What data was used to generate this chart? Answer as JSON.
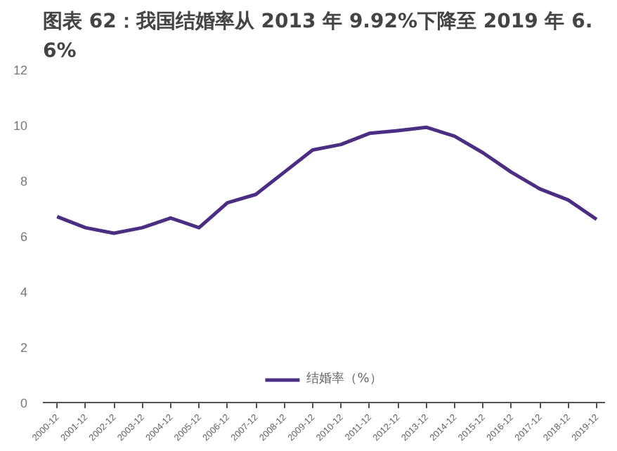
{
  "chart_data": {
    "type": "line",
    "title": "图表 62：我国结婚率从 2013 年 9.92%下降至 2019 年 6.6%",
    "categories": [
      "2000-12",
      "2001-12",
      "2002-12",
      "2003-12",
      "2004-12",
      "2005-12",
      "2006-12",
      "2007-12",
      "2008-12",
      "2009-12",
      "2010-12",
      "2011-12",
      "2012-12",
      "2013-12",
      "2014-12",
      "2015-12",
      "2016-12",
      "2017-12",
      "2018-12",
      "2019-12"
    ],
    "series": [
      {
        "name": "结婚率（%）",
        "color": "#4b2e83",
        "values": [
          6.7,
          6.3,
          6.1,
          6.3,
          6.65,
          6.3,
          7.2,
          7.5,
          8.3,
          9.1,
          9.3,
          9.7,
          9.8,
          9.92,
          9.6,
          9.0,
          8.3,
          7.7,
          7.3,
          6.6
        ]
      }
    ],
    "ylim": [
      0,
      12
    ],
    "yticks": [
      0,
      2,
      4,
      6,
      8,
      10,
      12
    ],
    "grid": false,
    "legend": "bottom",
    "marker": "none",
    "line_style": "solid"
  }
}
